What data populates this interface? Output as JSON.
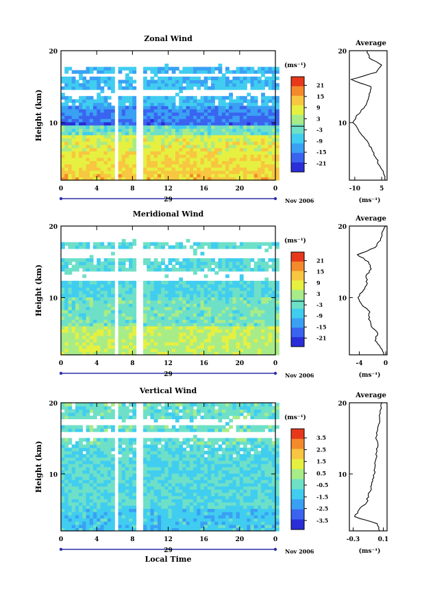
{
  "chart_data": [
    {
      "type": "heatmap",
      "title": "Zonal Wind",
      "ylabel": "Height (km)",
      "y_ticks": [
        "20",
        "10"
      ],
      "ylim": [
        2,
        20
      ],
      "x_ticks": [
        "0",
        "4",
        "8",
        "12",
        "16",
        "20",
        "0"
      ],
      "xlim": [
        0,
        24
      ],
      "date_label": "29",
      "date_suffix": "Nov 2006",
      "colorbar": {
        "unit": "(ms⁻¹)",
        "ticks": [
          "21",
          "15",
          "9",
          "3",
          "-3",
          "-9",
          "-15",
          "-21"
        ]
      },
      "average_panel": {
        "title": "Average",
        "x_ticks": [
          "-10",
          "5"
        ],
        "xlim": [
          -13,
          8
        ],
        "xlabel": "(ms⁻¹)",
        "y_ticks": [
          "20",
          "10"
        ],
        "profile": [
          [
            2,
            7
          ],
          [
            3,
            6
          ],
          [
            4,
            4
          ],
          [
            5,
            2
          ],
          [
            6,
            0
          ],
          [
            7,
            -2
          ],
          [
            8,
            -5
          ],
          [
            9,
            -8
          ],
          [
            10,
            -11
          ],
          [
            11,
            -9
          ],
          [
            12,
            -5
          ],
          [
            13,
            -3
          ],
          [
            14,
            -2
          ],
          [
            15,
            -1
          ],
          [
            16,
            -12
          ],
          [
            17,
            2
          ],
          [
            18,
            5
          ],
          [
            19,
            -2
          ],
          [
            20,
            -3
          ]
        ]
      }
    },
    {
      "type": "heatmap",
      "title": "Meridional Wind",
      "ylabel": "Height (km)",
      "y_ticks": [
        "20",
        "10"
      ],
      "ylim": [
        2,
        20
      ],
      "x_ticks": [
        "0",
        "4",
        "8",
        "12",
        "16",
        "20",
        "0"
      ],
      "xlim": [
        0,
        24
      ],
      "date_label": "29",
      "date_suffix": "Nov 2006",
      "colorbar": {
        "unit": "(ms⁻¹)",
        "ticks": [
          "21",
          "15",
          "9",
          "3",
          "-3",
          "-9",
          "-15",
          "-21"
        ]
      },
      "average_panel": {
        "title": "Average",
        "x_ticks": [
          "-4",
          "0"
        ],
        "xlim": [
          -5.5,
          0.2
        ],
        "xlabel": "(ms⁻¹)",
        "y_ticks": [
          "20",
          "10"
        ],
        "profile": [
          [
            2,
            -0.3
          ],
          [
            3,
            -0.8
          ],
          [
            4,
            -1.6
          ],
          [
            5,
            -1.2
          ],
          [
            6,
            -2.2
          ],
          [
            7,
            -2.6
          ],
          [
            8,
            -2.4
          ],
          [
            9,
            -3.6
          ],
          [
            10,
            -4.2
          ],
          [
            11,
            -3.4
          ],
          [
            12,
            -2.8
          ],
          [
            13,
            -3.0
          ],
          [
            14,
            -2.2
          ],
          [
            15,
            -2.6
          ],
          [
            16,
            -4.3
          ],
          [
            17,
            -1.6
          ],
          [
            18,
            -0.8
          ],
          [
            19,
            -0.6
          ],
          [
            20,
            0.0
          ]
        ]
      }
    },
    {
      "type": "heatmap",
      "title": "Vertical Wind",
      "ylabel": "Height (km)",
      "y_ticks": [
        "20",
        "10"
      ],
      "ylim": [
        2,
        20
      ],
      "x_ticks": [
        "0",
        "4",
        "8",
        "12",
        "16",
        "20",
        "0"
      ],
      "xlim": [
        0,
        24
      ],
      "date_label": "29",
      "date_suffix": "Nov 2006",
      "xlabel": "Local Time",
      "colorbar": {
        "unit": "(ms⁻¹)",
        "ticks": [
          "3.5",
          "2.5",
          "1.5",
          "0.5",
          "-0.5",
          "-1.5",
          "-2.5",
          "-3.5"
        ]
      },
      "average_panel": {
        "title": "Average",
        "x_ticks": [
          "-0.3",
          "0.1"
        ],
        "xlim": [
          -0.35,
          0.15
        ],
        "xlabel": "(ms⁻¹)",
        "y_ticks": [
          "20",
          "10"
        ],
        "profile": [
          [
            2,
            0.05
          ],
          [
            3,
            0.02
          ],
          [
            4,
            -0.28
          ],
          [
            5,
            -0.22
          ],
          [
            6,
            -0.12
          ],
          [
            7,
            -0.1
          ],
          [
            8,
            -0.06
          ],
          [
            9,
            -0.04
          ],
          [
            10,
            -0.02
          ],
          [
            11,
            -0.01
          ],
          [
            12,
            0.0
          ],
          [
            13,
            0.01
          ],
          [
            14,
            0.03
          ],
          [
            15,
            0.0
          ],
          [
            16,
            0.02
          ],
          [
            17,
            0.04
          ],
          [
            18,
            0.05
          ],
          [
            19,
            0.06
          ],
          [
            20,
            0.08
          ]
        ]
      }
    }
  ]
}
